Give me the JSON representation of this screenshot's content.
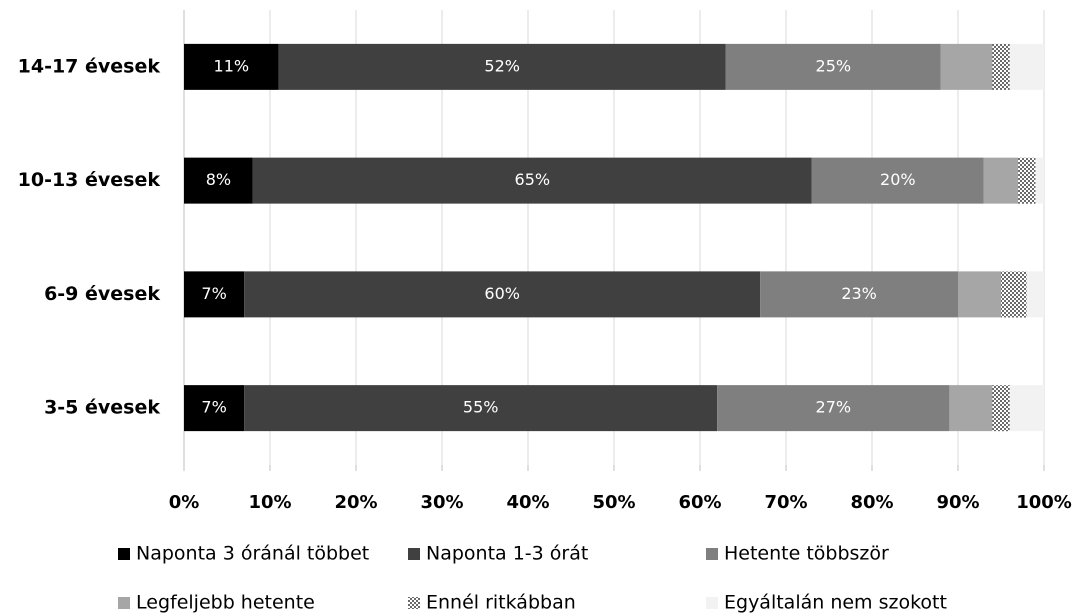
{
  "chart_data": {
    "type": "stacked_bar_horizontal",
    "categories": [
      "14-17 évesek",
      "10-13 évesek",
      "6-9 évesek",
      "3-5 évesek"
    ],
    "series": [
      {
        "name": "Naponta 3 óránál többet",
        "color": "#000000",
        "values": [
          11,
          8,
          7,
          7
        ],
        "value_labels": [
          "11%",
          "8%",
          "7%",
          "7%"
        ]
      },
      {
        "name": "Naponta 1-3 órát",
        "color": "#404040",
        "values": [
          52,
          65,
          60,
          55
        ],
        "value_labels": [
          "52%",
          "65%",
          "60%",
          "55%"
        ]
      },
      {
        "name": "Hetente többször",
        "color": "#7f7f7f",
        "values": [
          25,
          20,
          23,
          27
        ],
        "value_labels": [
          "25%",
          "20%",
          "23%",
          "27%"
        ]
      },
      {
        "name": "Legfeljebb hetente",
        "color": "#a6a6a6",
        "values": [
          6,
          4,
          5,
          5
        ]
      },
      {
        "name": "Ennél ritkábban",
        "color": "#ffffff",
        "pattern": "dots",
        "values": [
          2,
          2,
          3,
          2
        ]
      },
      {
        "name": "Egyáltalán nem szokott",
        "color": "#f2f2f2",
        "values": [
          4,
          1,
          2,
          4
        ]
      }
    ],
    "xlim": [
      0,
      100
    ],
    "xticks": [
      {
        "value": 0,
        "label": "0%"
      },
      {
        "value": 10,
        "label": "10%"
      },
      {
        "value": 20,
        "label": "20%"
      },
      {
        "value": 30,
        "label": "30%"
      },
      {
        "value": 40,
        "label": "40%"
      },
      {
        "value": 50,
        "label": "50%"
      },
      {
        "value": 60,
        "label": "60%"
      },
      {
        "value": 70,
        "label": "70%"
      },
      {
        "value": 80,
        "label": "80%"
      },
      {
        "value": 90,
        "label": "90%"
      },
      {
        "value": 100,
        "label": "100%"
      }
    ],
    "grid": true,
    "legend": "bottom"
  }
}
